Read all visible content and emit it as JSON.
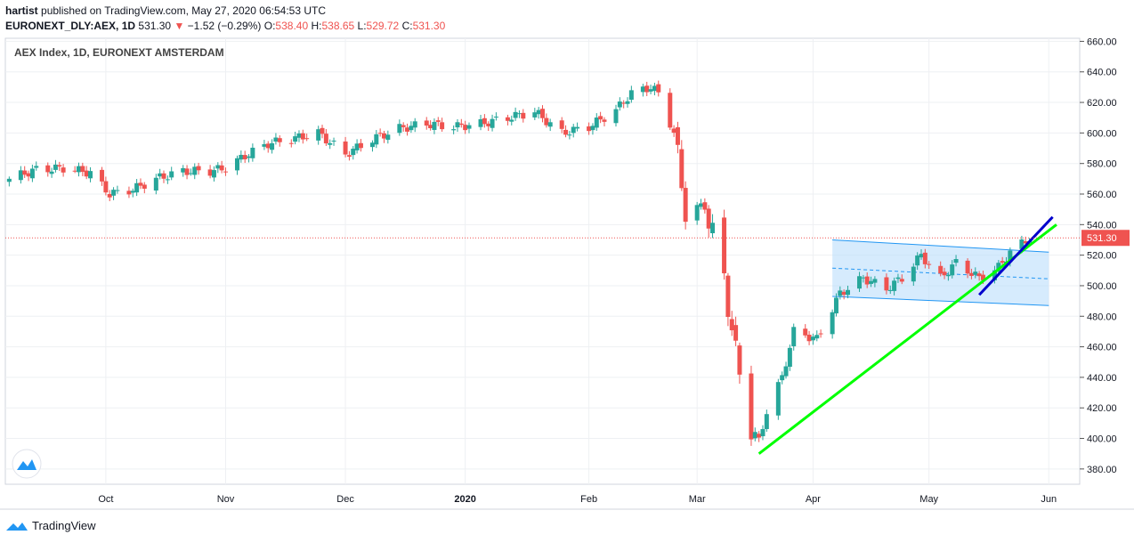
{
  "header": {
    "author": "hartist",
    "published": "published on TradingView.com, May 27, 2020 06:54:53 UTC",
    "symbol": "EURONEXT_DLY:AEX, 1D",
    "last": "531.30",
    "arrow": "▼",
    "change": "−1.52 (−0.29%)",
    "o_label": "O:",
    "o_value": "538.40",
    "h_label": "H:",
    "h_value": "538.65",
    "l_label": "L:",
    "l_value": "529.72",
    "c_label": "C:",
    "c_value": "531.30"
  },
  "footer": {
    "brand": "TradingView",
    "logo_icon": "tradingview-logo-icon"
  },
  "colors": {
    "up": "#26a69a",
    "down": "#ef5350",
    "support": "#00ff00",
    "short_trend": "#0000cc",
    "channel_fill": "#bbdefb",
    "channel_line": "#2196f3"
  },
  "chart_data": {
    "type": "candlestick",
    "title": "AEX Index, 1D, EURONEXT AMSTERDAM",
    "y_axis_side": "right",
    "ylim": [
      370,
      662
    ],
    "y_ticks": [
      380,
      400,
      420,
      440,
      460,
      480,
      500,
      520,
      540,
      560,
      580,
      600,
      620,
      640,
      660
    ],
    "y_tick_labels": [
      "380.00",
      "400.00",
      "420.00",
      "440.00",
      "460.00",
      "480.00",
      "500.00",
      "520.00",
      "540.00",
      "560.00",
      "580.00",
      "600.00",
      "620.00",
      "640.00",
      "660.00"
    ],
    "x_ticks": [
      {
        "label": "Oct",
        "date": "2019-10-01",
        "bold": false
      },
      {
        "label": "Nov",
        "date": "2019-11-01",
        "bold": false
      },
      {
        "label": "Dec",
        "date": "2019-12-02",
        "bold": false
      },
      {
        "label": "2020",
        "date": "2020-01-02",
        "bold": true
      },
      {
        "label": "Feb",
        "date": "2020-02-03",
        "bold": false
      },
      {
        "label": "Mar",
        "date": "2020-03-02",
        "bold": false
      },
      {
        "label": "Apr",
        "date": "2020-04-01",
        "bold": false
      },
      {
        "label": "May",
        "date": "2020-05-01",
        "bold": false
      },
      {
        "label": "Jun",
        "date": "2020-06-01",
        "bold": false
      }
    ],
    "last_price": 531.3,
    "last_price_label": "531.30",
    "series_points": [
      [
        "2019-09-06",
        570
      ],
      [
        "2019-09-13",
        576
      ],
      [
        "2019-09-20",
        577
      ],
      [
        "2019-09-27",
        574
      ],
      [
        "2019-10-02",
        560
      ],
      [
        "2019-10-08",
        563
      ],
      [
        "2019-10-14",
        570
      ],
      [
        "2019-10-21",
        575
      ],
      [
        "2019-10-28",
        575
      ],
      [
        "2019-11-01",
        577
      ],
      [
        "2019-11-06",
        585
      ],
      [
        "2019-11-12",
        593
      ],
      [
        "2019-11-18",
        596
      ],
      [
        "2019-11-25",
        600
      ],
      [
        "2019-12-02",
        586
      ],
      [
        "2019-12-09",
        596
      ],
      [
        "2019-12-16",
        603
      ],
      [
        "2019-12-23",
        606
      ],
      [
        "2019-12-30",
        604
      ],
      [
        "2020-01-06",
        606
      ],
      [
        "2020-01-13",
        610
      ],
      [
        "2020-01-20",
        614
      ],
      [
        "2020-01-27",
        600
      ],
      [
        "2020-02-03",
        604
      ],
      [
        "2020-02-10",
        615
      ],
      [
        "2020-02-14",
        626
      ],
      [
        "2020-02-19",
        630
      ],
      [
        "2020-02-21",
        626
      ],
      [
        "2020-02-25",
        600
      ],
      [
        "2020-02-28",
        550
      ],
      [
        "2020-03-04",
        552
      ],
      [
        "2020-03-09",
        505
      ],
      [
        "2020-03-12",
        455
      ],
      [
        "2020-03-16",
        408
      ],
      [
        "2020-03-18",
        398
      ],
      [
        "2020-03-20",
        418
      ],
      [
        "2020-03-24",
        440
      ],
      [
        "2020-03-27",
        470
      ],
      [
        "2020-04-02",
        465
      ],
      [
        "2020-04-08",
        495
      ],
      [
        "2020-04-14",
        505
      ],
      [
        "2020-04-20",
        498
      ],
      [
        "2020-04-24",
        505
      ],
      [
        "2020-04-29",
        520
      ],
      [
        "2020-05-04",
        505
      ],
      [
        "2020-05-08",
        515
      ],
      [
        "2020-05-14",
        505
      ],
      [
        "2020-05-19",
        512
      ],
      [
        "2020-05-22",
        522
      ],
      [
        "2020-05-27",
        531.3
      ]
    ],
    "drawings": {
      "support_line": {
        "from": [
          "2020-03-18",
          390
        ],
        "to": [
          "2020-06-03",
          540
        ],
        "color": "green"
      },
      "short_trend_line": {
        "from": [
          "2020-05-14",
          494
        ],
        "to": [
          "2020-06-02",
          545
        ],
        "color": "blue"
      },
      "channel": {
        "upper": [
          [
            "2020-04-06",
            530
          ],
          [
            "2020-06-01",
            522
          ]
        ],
        "lower": [
          [
            "2020-04-06",
            493
          ],
          [
            "2020-06-01",
            487
          ]
        ],
        "mid": [
          [
            "2020-04-06",
            511.5
          ],
          [
            "2020-06-01",
            504.5
          ]
        ]
      }
    }
  }
}
